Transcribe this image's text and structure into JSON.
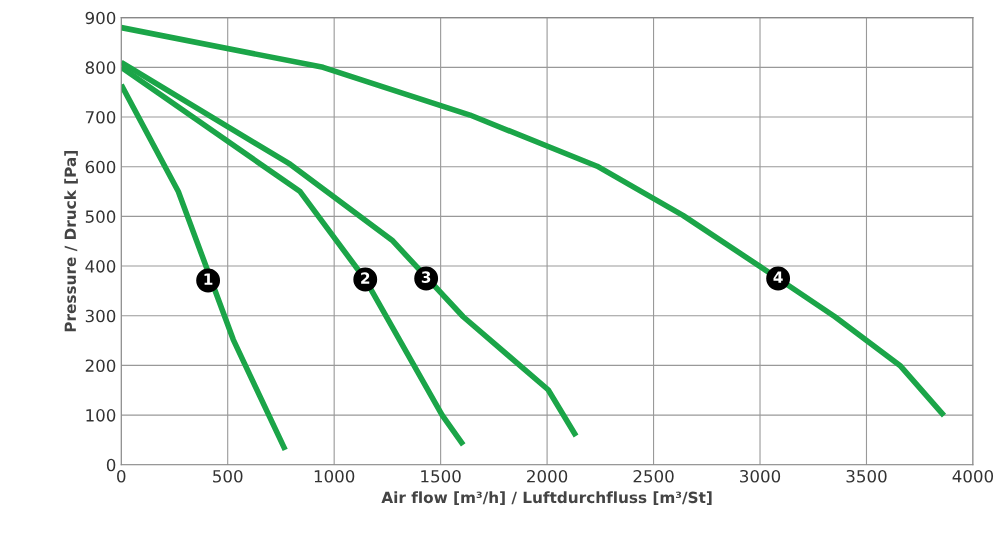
{
  "chart_data": {
    "type": "line",
    "xlabel": "Air flow [m³/h] / Luftdurchfluss [m³/St]",
    "ylabel": "Pressure / Druck [Pa]",
    "series": [
      {
        "color": "#1ba548",
        "x": [
          0,
          268,
          526,
          770
        ],
        "values": [
          765,
          550,
          252,
          30
        ]
      },
      {
        "color": "#1ba548",
        "x": [
          0,
          840,
          1146,
          1507,
          1606
        ],
        "values": [
          800,
          550,
          373,
          100,
          40
        ]
      },
      {
        "color": "#1ba548",
        "x": [
          0,
          793,
          1272,
          1606,
          2005,
          2136
        ],
        "values": [
          810,
          605,
          452,
          298,
          151,
          58
        ]
      },
      {
        "color": "#1ba548",
        "x": [
          0,
          948,
          1638,
          2235,
          2638,
          3085,
          3352,
          3657,
          3864
        ],
        "values": [
          880,
          800,
          704,
          601,
          502,
          375,
          298,
          200,
          99
        ]
      }
    ],
    "annotations": [
      {
        "text": "1",
        "x": 408,
        "y": 371
      },
      {
        "text": "2",
        "x": 1146,
        "y": 373
      },
      {
        "text": "3",
        "x": 1432,
        "y": 375
      },
      {
        "text": "4",
        "x": 3085,
        "y": 375
      }
    ],
    "xlim": [
      0,
      4000
    ],
    "xticks": [
      0,
      500,
      1000,
      1500,
      2000,
      2500,
      3000,
      3500,
      4000
    ],
    "ylim": [
      0,
      900
    ],
    "yticks": [
      0,
      100,
      200,
      300,
      400,
      500,
      600,
      700,
      800,
      900
    ],
    "grid": true,
    "legend": false,
    "marker": "none",
    "line_style": "solid"
  }
}
